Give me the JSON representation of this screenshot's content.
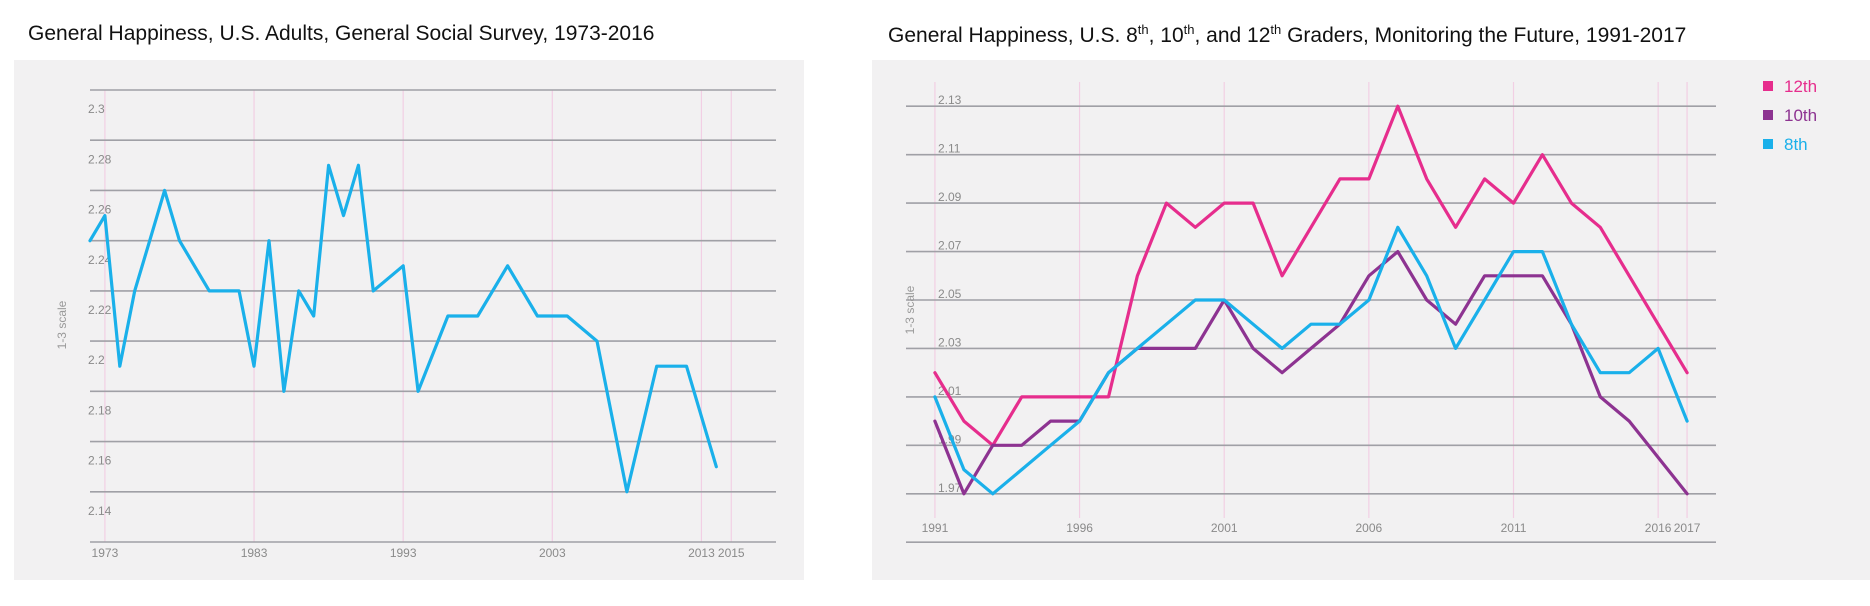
{
  "colors": {
    "panel_bg": "#f2f1f2",
    "grid": "#a0a0a6",
    "vline": "#f2cfe4",
    "twelfth": "#e62d8d",
    "tenth": "#8d3391",
    "eighth": "#1ab0ea"
  },
  "left_title": "General Happiness, U.S. Adults, General Social Survey, 1973-2016",
  "right_title": {
    "part1": "General Happiness, U.S. 8",
    "sup1": "th",
    "part2": ", 10",
    "sup2": "th",
    "part3": ", and 12",
    "sup3": "th",
    "part4": " Graders, Monitoring the Future, 1991-2017"
  },
  "chart_data": [
    {
      "type": "line",
      "title": "General Happiness, U.S. Adults, General Social Survey, 1973-2016",
      "xlabel": "",
      "ylabel": "1-3 scale",
      "xlim": [
        1972,
        2018
      ],
      "ylim": [
        2.13,
        2.31
      ],
      "yticks": [
        2.3,
        2.28,
        2.26,
        2.24,
        2.22,
        2.2,
        2.18,
        2.16,
        2.14
      ],
      "ytick_labels": [
        "2.3",
        "2.28",
        "2.26",
        "2.24",
        "2.22",
        "2.2",
        "2.18",
        "2.16",
        "2.14"
      ],
      "gridlines": [
        2.31,
        2.29,
        2.27,
        2.25,
        2.23,
        2.21,
        2.19,
        2.17,
        2.15,
        2.13
      ],
      "xticks": [
        1973,
        1983,
        1993,
        2003,
        2013,
        2015
      ],
      "xtick_labels": [
        "1973",
        "1983",
        "1993",
        "2003",
        "2013",
        "2015"
      ],
      "vlines": [
        1973,
        1983,
        1993,
        2003,
        2013,
        2015
      ],
      "series": [
        {
          "name": "Adults",
          "color": "#1ab0ea",
          "x": [
            1972,
            1973,
            1974,
            1975,
            1976,
            1977,
            1978,
            1980,
            1982,
            1983,
            1984,
            1985,
            1986,
            1987,
            1988,
            1989,
            1990,
            1991,
            1993,
            1994,
            1996,
            1998,
            2000,
            2002,
            2004,
            2006,
            2008,
            2010,
            2012,
            2014
          ],
          "values": [
            2.25,
            2.26,
            2.2,
            2.23,
            2.25,
            2.27,
            2.25,
            2.23,
            2.23,
            2.2,
            2.25,
            2.19,
            2.23,
            2.22,
            2.28,
            2.26,
            2.28,
            2.23,
            2.24,
            2.19,
            2.22,
            2.22,
            2.24,
            2.22,
            2.22,
            2.21,
            2.15,
            2.2,
            2.2,
            2.16
          ]
        }
      ]
    },
    {
      "type": "line",
      "title": "General Happiness, U.S. 8th, 10th, and 12th Graders, Monitoring the Future, 1991-2017",
      "xlabel": "",
      "ylabel": "1-3 scale",
      "xlim": [
        1990,
        2018
      ],
      "ylim": [
        1.96,
        2.14
      ],
      "yticks": [
        2.13,
        2.11,
        2.09,
        2.07,
        2.05,
        2.03,
        2.01,
        1.99,
        1.97
      ],
      "ytick_labels": [
        "2.13",
        "2.11",
        "2.09",
        "2.07",
        "2.05",
        "2.03",
        "2.01",
        "1.99",
        "1.97"
      ],
      "gridlines": [
        2.13,
        2.11,
        2.09,
        2.07,
        2.05,
        2.03,
        2.01,
        1.99,
        1.97,
        1.95
      ],
      "xticks": [
        1991,
        1996,
        2001,
        2006,
        2011,
        2016,
        2017
      ],
      "xtick_labels": [
        "1991",
        "1996",
        "2001",
        "2006",
        "2011",
        "2016",
        "2017"
      ],
      "vlines": [
        1991,
        1996,
        2001,
        2006,
        2011,
        2016,
        2017
      ],
      "series": [
        {
          "name": "12th",
          "color": "#e62d8d",
          "x": [
            1991,
            1992,
            1993,
            1994,
            1995,
            1996,
            1997,
            1998,
            1999,
            2000,
            2001,
            2002,
            2003,
            2004,
            2005,
            2006,
            2007,
            2008,
            2009,
            2010,
            2011,
            2012,
            2013,
            2014,
            2015,
            2016,
            2017
          ],
          "values": [
            2.02,
            2.0,
            1.99,
            2.01,
            2.01,
            2.01,
            2.01,
            2.06,
            2.09,
            2.08,
            2.09,
            2.09,
            2.06,
            2.08,
            2.1,
            2.1,
            2.13,
            2.1,
            2.08,
            2.1,
            2.09,
            2.11,
            2.09,
            2.08,
            2.06,
            2.04,
            2.02
          ]
        },
        {
          "name": "10th",
          "color": "#8d3391",
          "x": [
            1991,
            1992,
            1993,
            1994,
            1995,
            1996,
            1997,
            1998,
            1999,
            2000,
            2001,
            2002,
            2003,
            2004,
            2005,
            2006,
            2007,
            2008,
            2009,
            2010,
            2011,
            2012,
            2013,
            2014,
            2015,
            2016,
            2017
          ],
          "values": [
            2.0,
            1.97,
            1.99,
            1.99,
            2.0,
            2.0,
            2.02,
            2.03,
            2.03,
            2.03,
            2.05,
            2.03,
            2.02,
            2.03,
            2.04,
            2.06,
            2.07,
            2.05,
            2.04,
            2.06,
            2.06,
            2.06,
            2.04,
            2.01,
            2.0,
            1.985,
            1.97
          ]
        },
        {
          "name": "8th",
          "color": "#1ab0ea",
          "x": [
            1991,
            1992,
            1993,
            1994,
            1995,
            1996,
            1997,
            1998,
            1999,
            2000,
            2001,
            2002,
            2003,
            2004,
            2005,
            2006,
            2007,
            2008,
            2009,
            2010,
            2011,
            2012,
            2013,
            2014,
            2015,
            2016,
            2017
          ],
          "values": [
            2.01,
            1.98,
            1.97,
            1.98,
            1.99,
            2.0,
            2.02,
            2.03,
            2.04,
            2.05,
            2.05,
            2.04,
            2.03,
            2.04,
            2.04,
            2.05,
            2.08,
            2.06,
            2.03,
            2.05,
            2.07,
            2.07,
            2.04,
            2.02,
            2.02,
            2.03,
            2.0
          ]
        }
      ],
      "legend": [
        {
          "label": "12th",
          "color": "#e62d8d"
        },
        {
          "label": "10th",
          "color": "#8d3391"
        },
        {
          "label": "8th",
          "color": "#1ab0ea"
        }
      ],
      "legend_position": "top-right"
    }
  ]
}
